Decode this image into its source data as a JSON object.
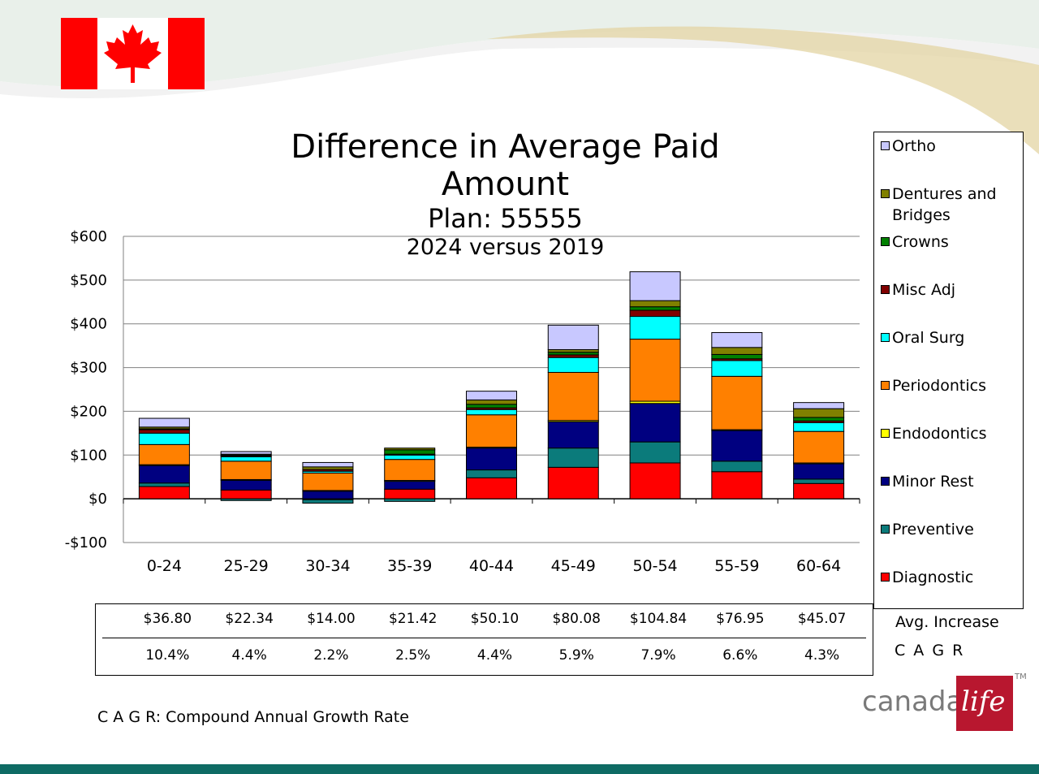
{
  "header": {
    "flag": "canada-flag"
  },
  "chart_data": {
    "type": "bar",
    "stacked": true,
    "title": "Difference in Average Paid Amount",
    "subtitle": "Plan: 55555",
    "subtitle2": "2024 versus 2019",
    "categories": [
      "0-24",
      "25-29",
      "30-34",
      "35-39",
      "40-44",
      "45-49",
      "50-54",
      "55-59",
      "60-64"
    ],
    "ylim": [
      -100,
      600
    ],
    "yticks": [
      -100,
      0,
      100,
      200,
      300,
      400,
      500,
      600
    ],
    "ytick_labels": [
      "-$100",
      "$0",
      "$100",
      "$200",
      "$300",
      "$400",
      "$500",
      "$600"
    ],
    "grid": true,
    "legend_position": "right",
    "series": [
      {
        "name": "Diagnostic",
        "color": "#ff0000",
        "values": [
          28,
          20,
          -2,
          22,
          48,
          72,
          82,
          62,
          35
        ]
      },
      {
        "name": "Preventive",
        "color": "#0b7b7b",
        "values": [
          8,
          -4,
          -8,
          -6,
          18,
          44,
          48,
          24,
          10
        ]
      },
      {
        "name": "Minor Rest",
        "color": "#000080",
        "values": [
          40,
          22,
          18,
          18,
          50,
          60,
          88,
          70,
          35
        ]
      },
      {
        "name": "Endodontics",
        "color": "#ffff00",
        "values": [
          2,
          2,
          1,
          2,
          2,
          3,
          5,
          2,
          2
        ]
      },
      {
        "name": "Periodontics",
        "color": "#ff8000",
        "values": [
          46,
          42,
          40,
          48,
          74,
          110,
          142,
          122,
          72
        ]
      },
      {
        "name": "Oral Surg",
        "color": "#00ffff",
        "values": [
          26,
          10,
          4,
          10,
          12,
          34,
          52,
          36,
          20
        ]
      },
      {
        "name": "Misc Adj",
        "color": "#800000",
        "values": [
          8,
          2,
          4,
          2,
          4,
          6,
          14,
          4,
          4
        ]
      },
      {
        "name": "Crowns",
        "color": "#008000",
        "values": [
          2,
          2,
          0,
          10,
          8,
          6,
          8,
          10,
          8
        ]
      },
      {
        "name": "Dentures and Bridges",
        "color": "#808000",
        "values": [
          4,
          2,
          6,
          4,
          10,
          6,
          14,
          16,
          20
        ]
      },
      {
        "name": "Ortho",
        "color": "#c8c8ff",
        "values": [
          20,
          6,
          10,
          0,
          20,
          56,
          66,
          34,
          14
        ]
      }
    ],
    "table": {
      "avg_increase": [
        "$36.80",
        "$22.34",
        "$14.00",
        "$21.42",
        "$50.10",
        "$80.08",
        "$104.84",
        "$76.95",
        "$45.07"
      ],
      "cagr": [
        "10.4%",
        "4.4%",
        "2.2%",
        "2.5%",
        "4.4%",
        "5.9%",
        "7.9%",
        "6.6%",
        "4.3%"
      ],
      "avg_increase_label": "Avg. Increase",
      "cagr_label": "C A G R"
    }
  },
  "footnote": "C A G R: Compound Annual Growth Rate",
  "logo": {
    "text": "canada",
    "script": "life",
    "tm": "TM"
  }
}
